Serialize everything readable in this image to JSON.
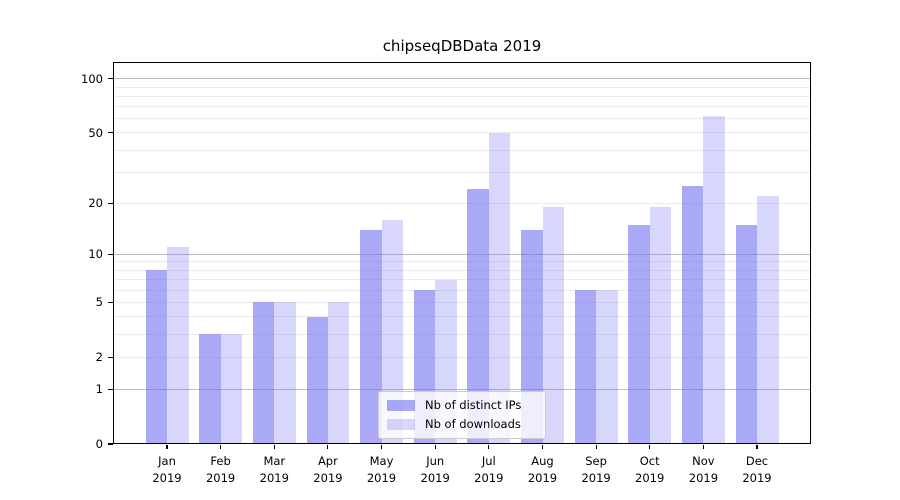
{
  "title": "chipseqDBData 2019",
  "colors": {
    "bar_distinct_ips": "rgba(107,107,239,0.58)",
    "bar_downloads": "rgba(107,107,239,0.27)",
    "grid_minor": "#ebebeb",
    "grid_major": "#bdbdbd",
    "spine": "#000000",
    "text": "#000000",
    "background": "#ffffff"
  },
  "chart_data": {
    "type": "bar",
    "title": "chipseqDBData 2019",
    "categories": [
      "Jan 2019",
      "Feb 2019",
      "Mar 2019",
      "Apr 2019",
      "May 2019",
      "Jun 2019",
      "Jul 2019",
      "Aug 2019",
      "Sep 2019",
      "Oct 2019",
      "Nov 2019",
      "Dec 2019"
    ],
    "series": [
      {
        "name": "Nb of distinct IPs",
        "color": "rgba(107,107,239,0.58)",
        "values": [
          8,
          3,
          5,
          4,
          14,
          6,
          24,
          14,
          6,
          15,
          25,
          15
        ]
      },
      {
        "name": "Nb of downloads",
        "color": "rgba(107,107,239,0.27)",
        "values": [
          11,
          3,
          5,
          5,
          16,
          7,
          50,
          19,
          6,
          19,
          62,
          22
        ]
      }
    ],
    "xlabel": "",
    "ylabel": "",
    "yscale": "log1p",
    "ylim": [
      0,
      124
    ],
    "y_ticks": [
      0,
      1,
      2,
      5,
      10,
      20,
      50,
      100
    ],
    "gridlines": {
      "major": [
        1,
        10,
        100
      ],
      "minor": [
        2,
        3,
        4,
        5,
        6,
        7,
        8,
        9,
        20,
        30,
        40,
        50,
        60,
        70,
        80,
        90
      ]
    },
    "grid": "on",
    "legend_position": "lower center inside plot"
  }
}
